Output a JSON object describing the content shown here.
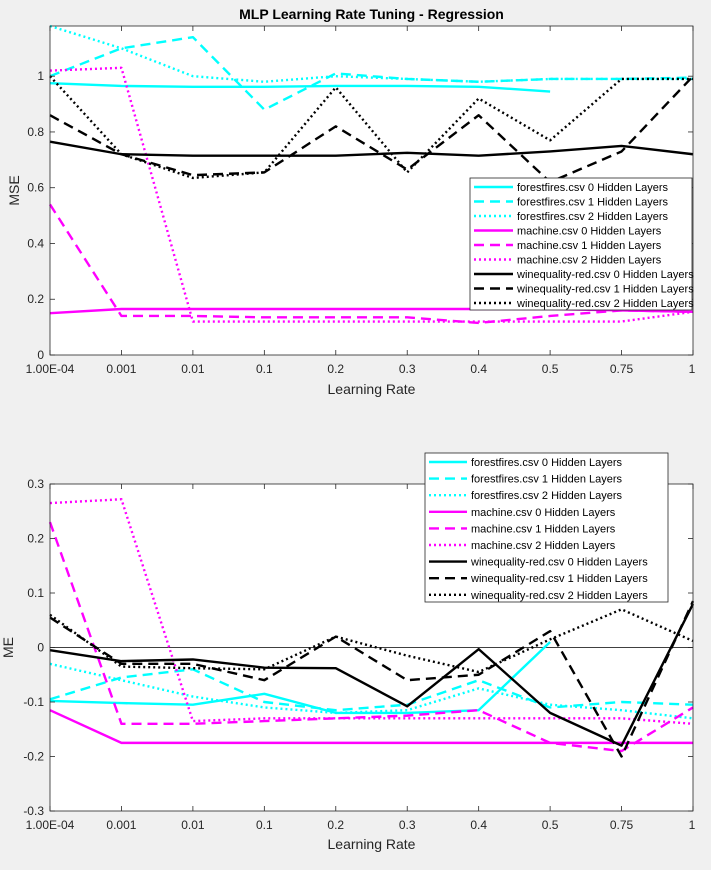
{
  "chart_data": [
    {
      "type": "line",
      "title": "MLP Learning Rate Tuning - Regression",
      "xlabel": "Learning Rate",
      "ylabel": "MSE",
      "categories": [
        "1.00E-04",
        "0.001",
        "0.01",
        "0.1",
        "0.2",
        "0.3",
        "0.4",
        "0.5",
        "0.75",
        "1"
      ],
      "ylim": [
        0,
        1.18
      ],
      "yticks": [
        0,
        0.2,
        0.4,
        0.6,
        0.8,
        1
      ],
      "yticklabels": [
        "0",
        "0.2",
        "0.4",
        "0.6",
        "0.8",
        "1"
      ],
      "legend_position": "right",
      "series": [
        {
          "name": "forestfires.csv 0 Hidden Layers",
          "color": "#00ffff",
          "dash": "solid",
          "values": [
            0.975,
            0.965,
            0.962,
            0.962,
            0.965,
            0.965,
            0.962,
            0.945,
            null,
            null
          ]
        },
        {
          "name": "forestfires.csv 1 Hidden Layers",
          "color": "#00ffff",
          "dash": "dashed",
          "values": [
            1.0,
            1.1,
            1.14,
            0.88,
            1.01,
            0.99,
            0.98,
            0.99,
            0.99,
            0.995
          ]
        },
        {
          "name": "forestfires.csv 2 Hidden Layers",
          "color": "#00ffff",
          "dash": "dotted",
          "values": [
            1.18,
            1.1,
            1.0,
            0.98,
            1.0,
            0.99,
            0.98,
            0.99,
            0.99,
            0.99
          ]
        },
        {
          "name": "machine.csv 0 Hidden Layers",
          "color": "#ff00ff",
          "dash": "solid",
          "values": [
            0.15,
            0.165,
            0.165,
            0.165,
            0.165,
            0.165,
            0.165,
            0.165,
            0.16,
            0.155
          ]
        },
        {
          "name": "machine.csv 1 Hidden Layers",
          "color": "#ff00ff",
          "dash": "dashed",
          "values": [
            0.54,
            0.14,
            0.14,
            0.135,
            0.135,
            0.135,
            0.115,
            0.14,
            0.16,
            0.155
          ]
        },
        {
          "name": "machine.csv 2 Hidden Layers",
          "color": "#ff00ff",
          "dash": "dotted",
          "values": [
            1.02,
            1.03,
            0.12,
            0.12,
            0.12,
            0.12,
            0.12,
            0.12,
            0.12,
            0.155
          ]
        },
        {
          "name": "winequality-red.csv 0 Hidden Layers",
          "color": "#000000",
          "dash": "solid",
          "values": [
            0.765,
            0.72,
            0.715,
            0.715,
            0.715,
            0.725,
            0.715,
            0.73,
            0.75,
            0.72
          ]
        },
        {
          "name": "winequality-red.csv 1 Hidden Layers",
          "color": "#000000",
          "dash": "dashed",
          "values": [
            0.86,
            0.72,
            0.645,
            0.655,
            0.82,
            0.665,
            0.86,
            0.62,
            0.73,
            1.0
          ]
        },
        {
          "name": "winequality-red.csv 2 Hidden Layers",
          "color": "#000000",
          "dash": "dotted",
          "values": [
            1.0,
            0.72,
            0.635,
            0.655,
            0.96,
            0.655,
            0.92,
            0.77,
            0.99,
            0.99
          ]
        }
      ]
    },
    {
      "type": "line",
      "title": "",
      "xlabel": "Learning Rate",
      "ylabel": "ME",
      "categories": [
        "1.00E-04",
        "0.001",
        "0.01",
        "0.1",
        "0.2",
        "0.3",
        "0.4",
        "0.5",
        "0.75",
        "1"
      ],
      "ylim": [
        -0.3,
        0.3
      ],
      "yticks": [
        -0.3,
        -0.2,
        -0.1,
        0,
        0.1,
        0.2,
        0.3
      ],
      "yticklabels": [
        "-0.3",
        "-0.2",
        "-0.1",
        "0",
        "0.1",
        "0.2",
        "0.3"
      ],
      "zero_line": true,
      "legend_position": "top-right",
      "series": [
        {
          "name": "forestfires.csv 0 Hidden Layers",
          "color": "#00ffff",
          "dash": "solid",
          "values": [
            -0.098,
            -0.102,
            -0.105,
            -0.085,
            -0.12,
            -0.12,
            -0.115,
            0.01,
            null,
            null
          ]
        },
        {
          "name": "forestfires.csv 1 Hidden Layers",
          "color": "#00ffff",
          "dash": "dashed",
          "values": [
            -0.095,
            -0.055,
            -0.04,
            -0.1,
            -0.115,
            -0.105,
            -0.06,
            -0.11,
            -0.1,
            -0.105
          ]
        },
        {
          "name": "forestfires.csv 2 Hidden Layers",
          "color": "#00ffff",
          "dash": "dotted",
          "values": [
            -0.03,
            -0.06,
            -0.09,
            -0.11,
            -0.12,
            -0.115,
            -0.075,
            -0.105,
            -0.115,
            -0.13
          ]
        },
        {
          "name": "machine.csv 0 Hidden Layers",
          "color": "#ff00ff",
          "dash": "solid",
          "values": [
            -0.115,
            -0.175,
            -0.175,
            -0.175,
            -0.175,
            -0.175,
            -0.175,
            -0.175,
            -0.175,
            -0.175
          ]
        },
        {
          "name": "machine.csv 1 Hidden Layers",
          "color": "#ff00ff",
          "dash": "dashed",
          "values": [
            0.23,
            -0.14,
            -0.14,
            -0.135,
            -0.13,
            -0.125,
            -0.115,
            -0.175,
            -0.19,
            -0.11
          ]
        },
        {
          "name": "machine.csv 2 Hidden Layers",
          "color": "#ff00ff",
          "dash": "dotted",
          "values": [
            0.265,
            0.272,
            -0.135,
            -0.13,
            -0.13,
            -0.13,
            -0.13,
            -0.13,
            -0.13,
            -0.14
          ]
        },
        {
          "name": "winequality-red.csv 0 Hidden Layers",
          "color": "#000000",
          "dash": "solid",
          "values": [
            -0.005,
            -0.025,
            -0.022,
            -0.037,
            -0.038,
            -0.108,
            -0.003,
            -0.12,
            -0.18,
            0.08
          ]
        },
        {
          "name": "winequality-red.csv 1 Hidden Layers",
          "color": "#000000",
          "dash": "dashed",
          "values": [
            0.055,
            -0.03,
            -0.03,
            -0.06,
            0.02,
            -0.06,
            -0.05,
            0.03,
            -0.2,
            0.085
          ]
        },
        {
          "name": "winequality-red.csv 2 Hidden Layers",
          "color": "#000000",
          "dash": "dotted",
          "values": [
            0.06,
            -0.035,
            -0.038,
            -0.04,
            0.02,
            -0.015,
            -0.045,
            0.015,
            0.07,
            0.012
          ]
        }
      ]
    }
  ]
}
